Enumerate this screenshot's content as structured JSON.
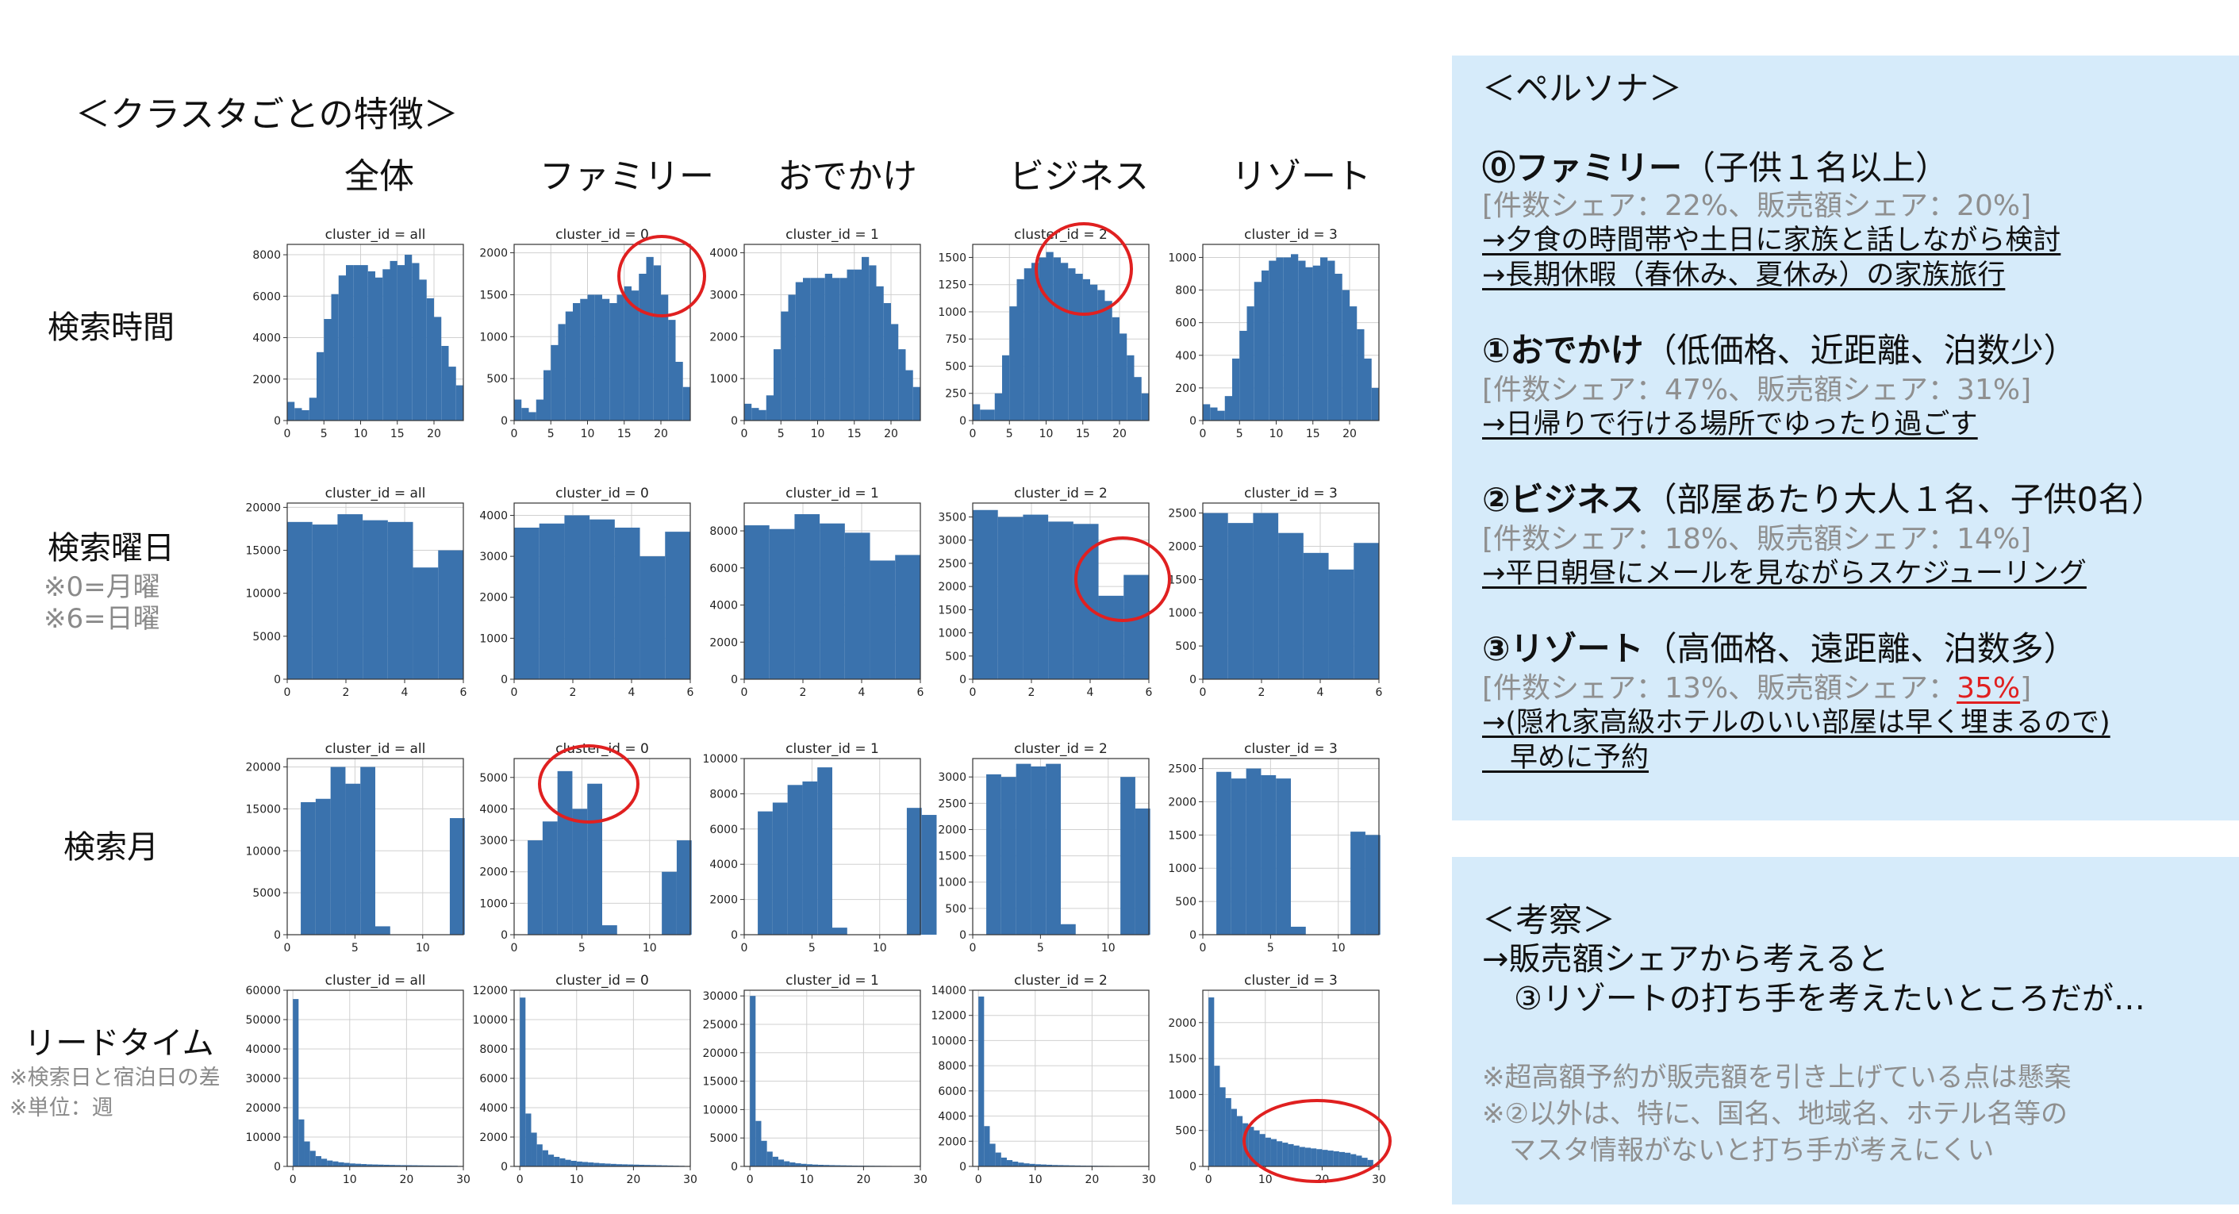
{
  "page": {
    "title": "＜クラスタごとの特徴＞"
  },
  "columns": [
    "全体",
    "ファミリー",
    "おでかけ",
    "ビジネス",
    "リゾート"
  ],
  "rows": [
    {
      "label": "検索時間",
      "notes": []
    },
    {
      "label": "検索曜日",
      "notes": [
        "※0=月曜",
        "※6=日曜"
      ]
    },
    {
      "label": "検索月",
      "notes": []
    },
    {
      "label": "リードタイム",
      "notes": [
        "※検索日と宿泊日の差",
        "※単位：週"
      ]
    }
  ],
  "chart_data": [
    {
      "type": "bar",
      "title": "cluster_id = all",
      "x_start": 0,
      "bin_width": 1,
      "xlim": [
        0,
        24
      ],
      "xticks": [
        0,
        5,
        10,
        15,
        20
      ],
      "ylim": [
        0,
        8500
      ],
      "yticks": [
        0,
        2000,
        4000,
        6000,
        8000
      ],
      "values": [
        900,
        600,
        500,
        1100,
        3300,
        4900,
        6100,
        7000,
        7500,
        7500,
        7500,
        7200,
        6900,
        7300,
        7700,
        7500,
        8000,
        7600,
        6800,
        5900,
        5000,
        3600,
        2600,
        1700
      ]
    },
    {
      "type": "bar",
      "title": "cluster_id = 0",
      "x_start": 0,
      "bin_width": 1,
      "xlim": [
        0,
        24
      ],
      "xticks": [
        0,
        5,
        10,
        15,
        20
      ],
      "ylim": [
        0,
        2100
      ],
      "yticks": [
        0,
        500,
        1000,
        1500,
        2000
      ],
      "values": [
        250,
        150,
        100,
        250,
        600,
        900,
        1150,
        1300,
        1400,
        1450,
        1500,
        1500,
        1450,
        1400,
        1500,
        1600,
        1550,
        1750,
        1950,
        1850,
        1500,
        1200,
        700,
        400
      ]
    },
    {
      "type": "bar",
      "title": "cluster_id = 1",
      "x_start": 0,
      "bin_width": 1,
      "xlim": [
        0,
        24
      ],
      "xticks": [
        0,
        5,
        10,
        15,
        20
      ],
      "ylim": [
        0,
        4200
      ],
      "yticks": [
        0,
        1000,
        2000,
        3000,
        4000
      ],
      "values": [
        400,
        300,
        250,
        600,
        1700,
        2600,
        3000,
        3300,
        3400,
        3400,
        3400,
        3500,
        3400,
        3400,
        3600,
        3600,
        3900,
        3700,
        3200,
        2800,
        2300,
        1700,
        1200,
        800
      ]
    },
    {
      "type": "bar",
      "title": "cluster_id = 2",
      "x_start": 0,
      "bin_width": 1,
      "xlim": [
        0,
        24
      ],
      "xticks": [
        0,
        5,
        10,
        15,
        20
      ],
      "ylim": [
        0,
        1620
      ],
      "yticks": [
        0,
        250,
        500,
        750,
        1000,
        1250,
        1500
      ],
      "values": [
        150,
        100,
        100,
        250,
        600,
        1050,
        1300,
        1400,
        1450,
        1500,
        1550,
        1500,
        1450,
        1400,
        1350,
        1300,
        1250,
        1200,
        1100,
        950,
        800,
        600,
        400,
        250
      ]
    },
    {
      "type": "bar",
      "title": "cluster_id = 3",
      "x_start": 0,
      "bin_width": 1,
      "xlim": [
        0,
        24
      ],
      "xticks": [
        0,
        5,
        10,
        15,
        20
      ],
      "ylim": [
        0,
        1080
      ],
      "yticks": [
        0,
        200,
        400,
        600,
        800,
        1000
      ],
      "values": [
        100,
        80,
        60,
        150,
        380,
        550,
        700,
        850,
        920,
        980,
        1000,
        1000,
        1020,
        980,
        940,
        950,
        1000,
        980,
        900,
        800,
        700,
        560,
        380,
        200
      ]
    },
    {
      "type": "bar",
      "title": "cluster_id = all",
      "x_start": 0,
      "bin_width": 0.857,
      "xlim": [
        0,
        6
      ],
      "xticks": [
        0,
        2,
        4,
        6
      ],
      "ylim": [
        0,
        20500
      ],
      "yticks": [
        0,
        5000,
        10000,
        15000,
        20000
      ],
      "values": [
        18300,
        18000,
        19200,
        18500,
        18300,
        13000,
        15000
      ]
    },
    {
      "type": "bar",
      "title": "cluster_id = 0",
      "x_start": 0,
      "bin_width": 0.857,
      "xlim": [
        0,
        6
      ],
      "xticks": [
        0,
        2,
        4,
        6
      ],
      "ylim": [
        0,
        4300
      ],
      "yticks": [
        0,
        1000,
        2000,
        3000,
        4000
      ],
      "values": [
        3700,
        3800,
        4000,
        3900,
        3700,
        3000,
        3600
      ]
    },
    {
      "type": "bar",
      "title": "cluster_id = 1",
      "x_start": 0,
      "bin_width": 0.857,
      "xlim": [
        0,
        6
      ],
      "xticks": [
        0,
        2,
        4,
        6
      ],
      "ylim": [
        0,
        9500
      ],
      "yticks": [
        0,
        2000,
        4000,
        6000,
        8000
      ],
      "values": [
        8300,
        8100,
        8900,
        8400,
        7900,
        6400,
        6700
      ]
    },
    {
      "type": "bar",
      "title": "cluster_id = 2",
      "x_start": 0,
      "bin_width": 0.857,
      "xlim": [
        0,
        6
      ],
      "xticks": [
        0,
        2,
        4,
        6
      ],
      "ylim": [
        0,
        3800
      ],
      "yticks": [
        0,
        500,
        1000,
        1500,
        2000,
        2500,
        3000,
        3500
      ],
      "values": [
        3650,
        3500,
        3550,
        3400,
        3350,
        1800,
        2250
      ]
    },
    {
      "type": "bar",
      "title": "cluster_id = 3",
      "x_start": 0,
      "bin_width": 0.857,
      "xlim": [
        0,
        6
      ],
      "xticks": [
        0,
        2,
        4,
        6
      ],
      "ylim": [
        0,
        2650
      ],
      "yticks": [
        0,
        500,
        1000,
        1500,
        2000,
        2500
      ],
      "values": [
        2500,
        2350,
        2500,
        2200,
        1900,
        1650,
        2050
      ]
    },
    {
      "type": "bar",
      "title": "cluster_id = all",
      "x_start": 1,
      "bin_width": 1.1,
      "xlim": [
        0,
        13
      ],
      "xticks": [
        0,
        5,
        10
      ],
      "ylim": [
        0,
        21000
      ],
      "yticks": [
        0,
        5000,
        10000,
        15000,
        20000
      ],
      "values": [
        15800,
        16200,
        20000,
        18000,
        20000,
        1000,
        0,
        0,
        0,
        0,
        13900
      ]
    },
    {
      "type": "bar",
      "title": "cluster_id = 0",
      "x_start": 1,
      "bin_width": 1.1,
      "xlim": [
        0,
        13
      ],
      "xticks": [
        0,
        5,
        10
      ],
      "ylim": [
        0,
        5600
      ],
      "yticks": [
        0,
        1000,
        2000,
        3000,
        4000,
        5000
      ],
      "values": [
        3000,
        3600,
        5200,
        4000,
        4800,
        300,
        0,
        0,
        0,
        2000,
        3000
      ]
    },
    {
      "type": "bar",
      "title": "cluster_id = 1",
      "x_start": 1,
      "bin_width": 1.1,
      "xlim": [
        0,
        13
      ],
      "xticks": [
        0,
        5,
        10
      ],
      "ylim": [
        0,
        10000
      ],
      "yticks": [
        0,
        2000,
        4000,
        6000,
        8000,
        10000
      ],
      "values": [
        7000,
        7500,
        8500,
        8700,
        9500,
        400,
        0,
        0,
        0,
        0,
        7200,
        6800
      ]
    },
    {
      "type": "bar",
      "title": "cluster_id = 2",
      "x_start": 1,
      "bin_width": 1.1,
      "xlim": [
        0,
        13
      ],
      "xticks": [
        0,
        5,
        10
      ],
      "ylim": [
        0,
        3350
      ],
      "yticks": [
        0,
        500,
        1000,
        1500,
        2000,
        2500,
        3000
      ],
      "values": [
        3050,
        3000,
        3250,
        3200,
        3250,
        200,
        0,
        0,
        0,
        3000,
        2400
      ]
    },
    {
      "type": "bar",
      "title": "cluster_id = 3",
      "x_start": 1,
      "bin_width": 1.1,
      "xlim": [
        0,
        13
      ],
      "xticks": [
        0,
        5,
        10
      ],
      "ylim": [
        0,
        2650
      ],
      "yticks": [
        0,
        500,
        1000,
        1500,
        2000,
        2500
      ],
      "values": [
        2450,
        2350,
        2500,
        2400,
        2350,
        120,
        0,
        0,
        0,
        1550,
        1500
      ]
    },
    {
      "type": "bar",
      "title": "cluster_id = all",
      "x_start": 0,
      "bin_width": 1,
      "xlim": [
        -1,
        30
      ],
      "xticks": [
        0,
        10,
        20,
        30
      ],
      "ylim": [
        0,
        60000
      ],
      "yticks": [
        0,
        10000,
        20000,
        30000,
        40000,
        50000,
        60000
      ],
      "values": [
        57000,
        16000,
        8500,
        5300,
        3500,
        2600,
        2000,
        1700,
        1400,
        1200,
        1000,
        900,
        800,
        700,
        650,
        600,
        550,
        500,
        450,
        420,
        400,
        380,
        350,
        320,
        300,
        280,
        260,
        240,
        220
      ]
    },
    {
      "type": "bar",
      "title": "cluster_id = 0",
      "x_start": 0,
      "bin_width": 1,
      "xlim": [
        -1,
        30
      ],
      "xticks": [
        0,
        10,
        20,
        30
      ],
      "ylim": [
        0,
        12000
      ],
      "yticks": [
        0,
        2000,
        4000,
        6000,
        8000,
        10000,
        12000
      ],
      "values": [
        11500,
        3600,
        2300,
        1500,
        1100,
        800,
        650,
        550,
        450,
        380,
        330,
        300,
        270,
        240,
        210,
        190,
        170,
        150,
        140,
        130,
        120,
        110,
        100,
        90,
        80,
        70,
        60,
        50,
        40
      ]
    },
    {
      "type": "bar",
      "title": "cluster_id = 1",
      "x_start": 0,
      "bin_width": 1,
      "xlim": [
        -1,
        30
      ],
      "xticks": [
        0,
        10,
        20,
        30
      ],
      "ylim": [
        0,
        31000
      ],
      "yticks": [
        0,
        5000,
        10000,
        15000,
        20000,
        25000,
        30000
      ],
      "values": [
        30000,
        8000,
        4500,
        2600,
        1700,
        1200,
        900,
        700,
        550,
        450,
        380,
        320,
        280,
        250,
        220,
        200,
        180,
        160,
        140,
        130,
        120,
        110,
        100,
        90,
        80,
        70,
        60,
        50,
        40
      ]
    },
    {
      "type": "bar",
      "title": "cluster_id = 2",
      "x_start": 0,
      "bin_width": 1,
      "xlim": [
        -1,
        30
      ],
      "xticks": [
        0,
        10,
        20,
        30
      ],
      "ylim": [
        0,
        14000
      ],
      "yticks": [
        0,
        2000,
        4000,
        6000,
        8000,
        10000,
        12000,
        14000
      ],
      "values": [
        13500,
        3200,
        1800,
        1100,
        700,
        500,
        380,
        300,
        240,
        200,
        170,
        150,
        130,
        110,
        100,
        90,
        80,
        70,
        60,
        55,
        50,
        45,
        40,
        35,
        30,
        28,
        25,
        22,
        20
      ]
    },
    {
      "type": "bar",
      "title": "cluster_id = 3",
      "x_start": 0,
      "bin_width": 1,
      "xlim": [
        -1,
        30
      ],
      "xticks": [
        0,
        10,
        20,
        30
      ],
      "ylim": [
        0,
        2450
      ],
      "yticks": [
        0,
        500,
        1000,
        1500,
        2000
      ],
      "values": [
        2350,
        1400,
        1100,
        950,
        800,
        700,
        600,
        550,
        500,
        450,
        400,
        380,
        350,
        330,
        310,
        290,
        270,
        260,
        250,
        240,
        230,
        220,
        210,
        200,
        190,
        170,
        150,
        120,
        90
      ]
    }
  ],
  "persona": {
    "title": "＜ペルソナ＞",
    "items": [
      {
        "name": "⓪ファミリー",
        "desc": "（子供１名以上）",
        "share_prefix": "[件数シェア：22%、販売額シェア：20%]",
        "share_hl": "",
        "share_suffix": "",
        "lines": [
          "→夕食の時間帯や土日に家族と話しながら検討",
          "→長期休暇（春休み、夏休み）の家族旅行"
        ]
      },
      {
        "name": "①おでかけ",
        "desc": "（低価格、近距離、泊数少）",
        "share_prefix": "[件数シェア：47%、販売額シェア：31%]",
        "share_hl": "",
        "share_suffix": "",
        "lines": [
          "→日帰りで行ける場所でゆったり過ごす"
        ]
      },
      {
        "name": "②ビジネス",
        "desc": "（部屋あたり大人１名、子供0名）",
        "share_prefix": "[件数シェア：18%、販売額シェア：14%]",
        "share_hl": "",
        "share_suffix": "",
        "lines": [
          "→平日朝昼にメールを見ながらスケジューリング"
        ]
      },
      {
        "name": "③リゾート",
        "desc": "（高価格、遠距離、泊数多）",
        "share_prefix": "[件数シェア：13%、販売額シェア：",
        "share_hl": "35%",
        "share_suffix": "]",
        "lines": [
          "→(隠れ家高級ホテルのいい部屋は早く埋まるので)",
          "　早めに予約"
        ]
      }
    ]
  },
  "insight": {
    "title": "＜考察＞",
    "lines": [
      "→販売額シェアから考えると",
      "　③リゾートの打ち手を考えたいところだが…"
    ],
    "notes": [
      "※超高額予約が販売額を引き上げている点は懸案",
      "※②以外は、特に、国名、地域名、ホテル名等の",
      "　マスタ情報がないと打ち手が考えにくい"
    ]
  },
  "colors": {
    "bar": "#3a72ad",
    "panel": "#d6ebfa",
    "highlight": "#e02020",
    "note": "#8a8a8a"
  }
}
